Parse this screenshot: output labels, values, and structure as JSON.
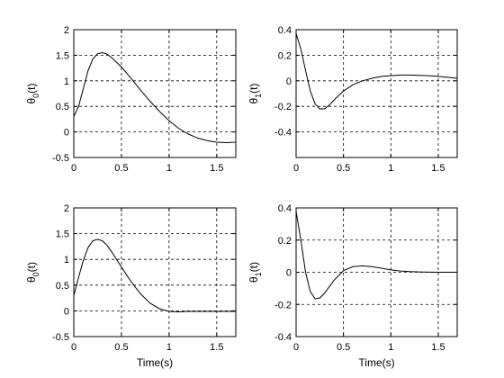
{
  "chart_data": [
    {
      "type": "line",
      "position": "top-left",
      "ylabel": "θ0(t)",
      "ylabel_main": "θ",
      "ylabel_sub": "0",
      "ylabel_tail": "(t)",
      "xlabel": "",
      "xlim": [
        0,
        1.7
      ],
      "ylim": [
        -0.5,
        2
      ],
      "xticks": [
        0,
        0.5,
        1,
        1.5
      ],
      "xtick_labels": [
        "0",
        "0.5",
        "1",
        "1.5"
      ],
      "yticks": [
        -0.5,
        0,
        0.5,
        1,
        1.5,
        2
      ],
      "ytick_labels": [
        "-0.5",
        "0",
        "0.5",
        "1",
        "1.5",
        "2"
      ],
      "grid": true,
      "series": [
        {
          "x": [
            0,
            0.05,
            0.1,
            0.15,
            0.2,
            0.25,
            0.3,
            0.35,
            0.4,
            0.5,
            0.6,
            0.7,
            0.8,
            0.9,
            1.0,
            1.1,
            1.2,
            1.3,
            1.4,
            1.5,
            1.6,
            1.7
          ],
          "y": [
            0.3,
            0.5,
            0.85,
            1.2,
            1.43,
            1.53,
            1.55,
            1.52,
            1.45,
            1.27,
            1.05,
            0.82,
            0.6,
            0.4,
            0.22,
            0.07,
            -0.04,
            -0.12,
            -0.17,
            -0.2,
            -0.21,
            -0.2
          ]
        }
      ]
    },
    {
      "type": "line",
      "position": "top-right",
      "ylabel": "θ1(t)",
      "ylabel_main": "θ",
      "ylabel_sub": "1",
      "ylabel_tail": "(t)",
      "xlabel": "",
      "xlim": [
        0,
        1.7
      ],
      "ylim": [
        -0.6,
        0.4
      ],
      "xticks": [
        0,
        0.5,
        1,
        1.5
      ],
      "xtick_labels": [
        "0",
        "0.5",
        "1",
        "1.5"
      ],
      "yticks": [
        -0.4,
        -0.2,
        0,
        0.2,
        0.4
      ],
      "ytick_labels": [
        "-0.4",
        "-0.2",
        "0",
        "0.2",
        "0.4"
      ],
      "grid": true,
      "series": [
        {
          "x": [
            0,
            0.05,
            0.1,
            0.15,
            0.2,
            0.25,
            0.3,
            0.35,
            0.4,
            0.5,
            0.6,
            0.7,
            0.8,
            0.9,
            1.0,
            1.1,
            1.2,
            1.3,
            1.4,
            1.5,
            1.6,
            1.7
          ],
          "y": [
            0.37,
            0.25,
            0.08,
            -0.08,
            -0.18,
            -0.22,
            -0.22,
            -0.19,
            -0.15,
            -0.08,
            -0.03,
            0.0,
            0.02,
            0.035,
            0.04,
            0.045,
            0.045,
            0.043,
            0.04,
            0.035,
            0.028,
            0.02
          ]
        }
      ]
    },
    {
      "type": "line",
      "position": "bottom-left",
      "ylabel": "θ0(t)",
      "ylabel_main": "θ",
      "ylabel_sub": "0",
      "ylabel_tail": "(t)",
      "xlabel": "Time(s)",
      "xlim": [
        0,
        1.7
      ],
      "ylim": [
        -0.5,
        2
      ],
      "xticks": [
        0,
        0.5,
        1,
        1.5
      ],
      "xtick_labels": [
        "0",
        "0.5",
        "1",
        "1.5"
      ],
      "yticks": [
        -0.5,
        0,
        0.5,
        1,
        1.5,
        2
      ],
      "ytick_labels": [
        "-0.5",
        "0",
        "0.5",
        "1",
        "1.5",
        "2"
      ],
      "grid": true,
      "series": [
        {
          "x": [
            0,
            0.05,
            0.1,
            0.15,
            0.2,
            0.25,
            0.3,
            0.35,
            0.4,
            0.5,
            0.6,
            0.7,
            0.8,
            0.9,
            1.0,
            1.1,
            1.2,
            1.3,
            1.4,
            1.5,
            1.6,
            1.7
          ],
          "y": [
            0.3,
            0.65,
            0.98,
            1.23,
            1.36,
            1.39,
            1.36,
            1.27,
            1.14,
            0.85,
            0.57,
            0.33,
            0.15,
            0.04,
            -0.01,
            -0.02,
            -0.01,
            -0.01,
            -0.01,
            -0.01,
            -0.01,
            -0.01
          ]
        }
      ]
    },
    {
      "type": "line",
      "position": "bottom-right",
      "ylabel": "θ1(t)",
      "ylabel_main": "θ",
      "ylabel_sub": "1",
      "ylabel_tail": "(t)",
      "xlabel": "Time(s)",
      "xlim": [
        0,
        1.7
      ],
      "ylim": [
        -0.4,
        0.4
      ],
      "xticks": [
        0,
        0.5,
        1,
        1.5
      ],
      "xtick_labels": [
        "0",
        "0.5",
        "1",
        "1.5"
      ],
      "yticks": [
        -0.4,
        -0.2,
        0,
        0.2,
        0.4
      ],
      "ytick_labels": [
        "-0.4",
        "-0.2",
        "0",
        "0.2",
        "0.4"
      ],
      "grid": true,
      "series": [
        {
          "x": [
            0,
            0.05,
            0.1,
            0.15,
            0.2,
            0.25,
            0.3,
            0.35,
            0.4,
            0.5,
            0.6,
            0.7,
            0.8,
            0.9,
            1.0,
            1.1,
            1.2,
            1.3,
            1.4,
            1.5,
            1.6,
            1.7
          ],
          "y": [
            0.38,
            0.2,
            0.0,
            -0.12,
            -0.165,
            -0.16,
            -0.13,
            -0.09,
            -0.05,
            0.01,
            0.035,
            0.04,
            0.035,
            0.025,
            0.015,
            0.008,
            0.004,
            0.002,
            0.001,
            0.0,
            0.0,
            0.0
          ]
        }
      ]
    }
  ]
}
